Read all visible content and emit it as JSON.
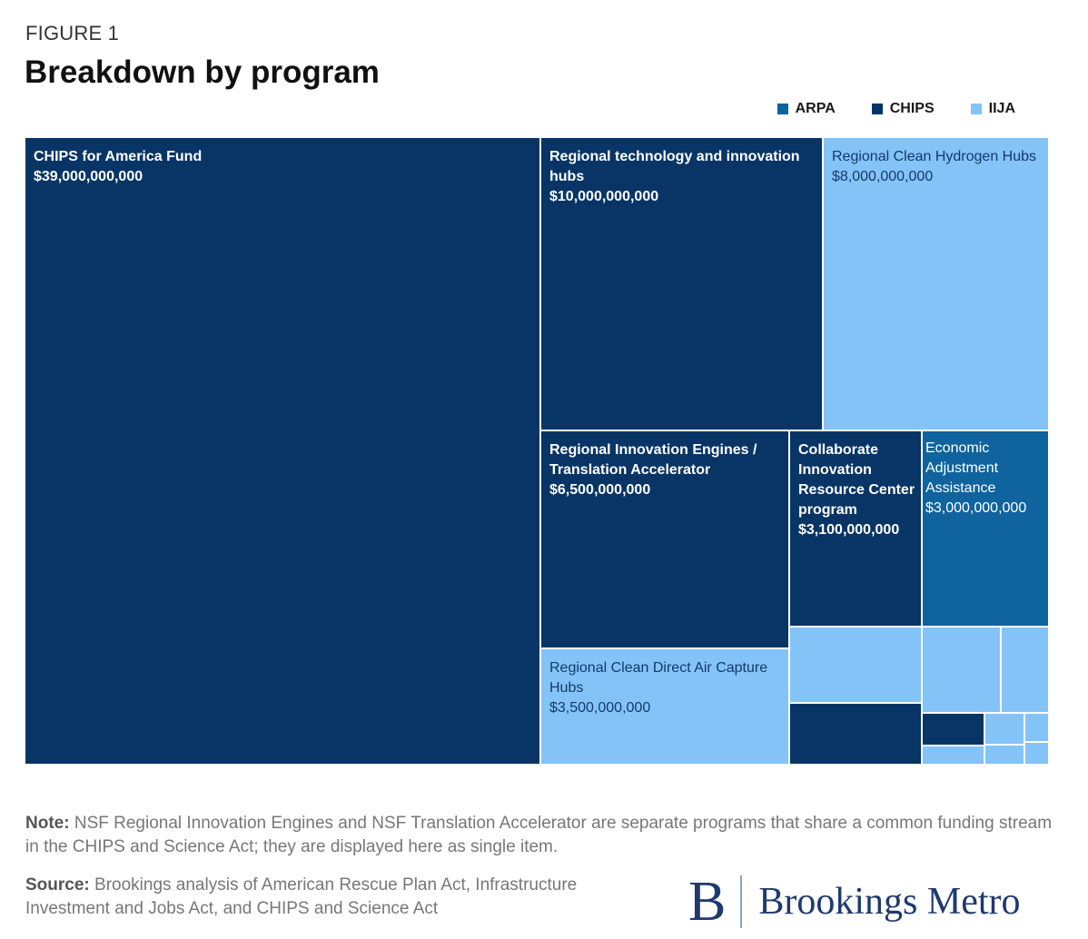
{
  "figure_label": "FIGURE 1",
  "title": "Breakdown by program",
  "legend": [
    {
      "name": "ARPA",
      "color": "#0f639e"
    },
    {
      "name": "CHIPS",
      "color": "#083566"
    },
    {
      "name": "IIJA",
      "color": "#84c3f8"
    }
  ],
  "chart_data": {
    "type": "treemap",
    "title": "Breakdown by program",
    "unit": "USD",
    "items": [
      {
        "label": "CHIPS for America Fund",
        "value_text": "$39,000,000,000",
        "value": 39000000000,
        "program": "CHIPS"
      },
      {
        "label": "Regional technology and innovation hubs",
        "value_text": "$10,000,000,000",
        "value": 10000000000,
        "program": "CHIPS"
      },
      {
        "label": "Regional Clean Hydrogen Hubs",
        "value_text": "$8,000,000,000",
        "value": 8000000000,
        "program": "IIJA"
      },
      {
        "label": "Regional Innovation Engines / Translation Accelerator",
        "value_text": "$6,500,000,000",
        "value": 6500000000,
        "program": "CHIPS"
      },
      {
        "label": "Collaborate Innovation Resource Center program",
        "value_text": "$3,100,000,000",
        "value": 3100000000,
        "program": "CHIPS"
      },
      {
        "label": "Economic Adjustment Assistance",
        "value_text": "$3,000,000,000",
        "value": 3000000000,
        "program": "ARPA"
      },
      {
        "label": "Regional Clean Direct Air Capture Hubs",
        "value_text": "$3,500,000,000",
        "value": 3500000000,
        "program": "IIJA"
      },
      {
        "label": "",
        "value_text": "",
        "program": "IIJA"
      },
      {
        "label": "",
        "value_text": "",
        "program": "CHIPS"
      },
      {
        "label": "",
        "value_text": "",
        "program": "IIJA"
      },
      {
        "label": "",
        "value_text": "",
        "program": "IIJA"
      },
      {
        "label": "",
        "value_text": "",
        "program": "CHIPS"
      },
      {
        "label": "",
        "value_text": "",
        "program": "IIJA"
      },
      {
        "label": "",
        "value_text": "",
        "program": "IIJA"
      },
      {
        "label": "",
        "value_text": "",
        "program": "IIJA"
      },
      {
        "label": "",
        "value_text": "",
        "program": "IIJA"
      },
      {
        "label": "",
        "value_text": "",
        "program": "IIJA"
      }
    ]
  },
  "note": {
    "label": "Note:",
    "text": "NSF Regional Innovation Engines and NSF Translation Accelerator are separate programs that share a common funding stream in the CHIPS and Science Act; they are displayed here as single item."
  },
  "source": {
    "label": "Source:",
    "text": "Brookings analysis of American Rescue Plan Act, Infrastructure Investment and Jobs Act, and CHIPS and Science Act"
  },
  "logo": {
    "initial": "B",
    "text": "Brookings Metro"
  }
}
